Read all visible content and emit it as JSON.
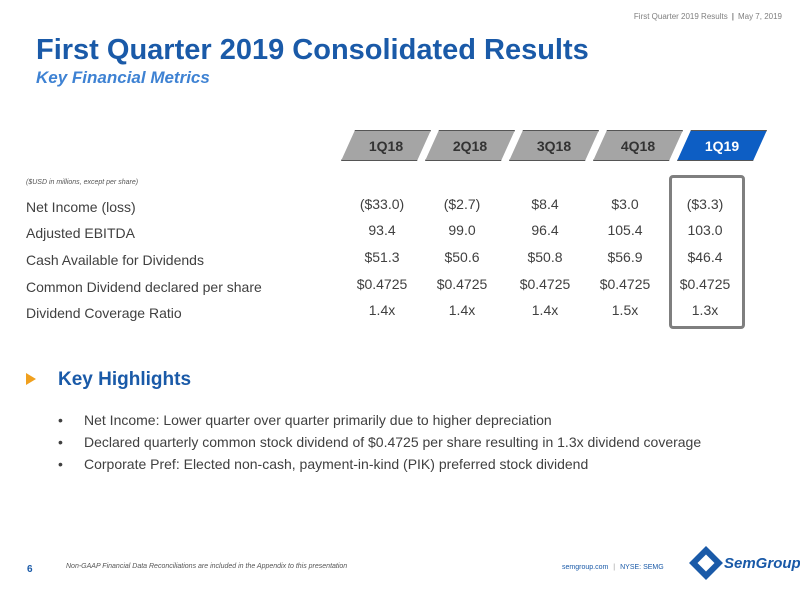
{
  "header": {
    "meta_left": "First Quarter 2019 Results",
    "meta_right": "May 7, 2019"
  },
  "title": "First Quarter 2019 Consolidated Results",
  "subtitle": "Key Financial Metrics",
  "quarters": [
    "1Q18",
    "2Q18",
    "3Q18",
    "4Q18",
    "1Q19"
  ],
  "active_quarter_index": 4,
  "units_note": "($USD in millions, except per share)",
  "metrics": [
    {
      "label": "Net Income (loss)",
      "values": [
        "($33.0)",
        "($2.7)",
        "$8.4",
        "$3.0",
        "($3.3)"
      ]
    },
    {
      "label": "Adjusted EBITDA",
      "values": [
        "93.4",
        "99.0",
        "96.4",
        "105.4",
        "103.0"
      ]
    },
    {
      "label": "Cash Available for Dividends",
      "values": [
        "$51.3",
        "$50.6",
        "$50.8",
        "$56.9",
        "$46.4"
      ]
    },
    {
      "label": "Common Dividend declared per share",
      "values": [
        "$0.4725",
        "$0.4725",
        "$0.4725",
        "$0.4725",
        "$0.4725"
      ]
    },
    {
      "label": "Dividend Coverage Ratio",
      "values": [
        "1.4x",
        "1.4x",
        "1.4x",
        "1.5x",
        "1.3x"
      ]
    }
  ],
  "highlights": {
    "title": "Key Highlights",
    "bullet_glyph": "•",
    "items": [
      "Net Income:  Lower quarter over quarter primarily due to higher depreciation",
      "Declared quarterly common stock dividend of $0.4725 per share resulting in 1.3x dividend coverage",
      "Corporate Pref:  Elected non-cash, payment-in-kind (PIK) preferred stock dividend"
    ]
  },
  "footer": {
    "page_number": "6",
    "footnote": "Non-GAAP Financial Data Reconciliations are included in the Appendix to this presentation",
    "website": "semgroup.com",
    "ticker": "NYSE: SEMG",
    "logo_text": "SemGroup"
  },
  "colors": {
    "title_blue": "#1a5aa8",
    "tab_gray": "#a5a5a5",
    "tab_active": "#0d5ec4",
    "arrow_orange": "#f0a01e"
  }
}
